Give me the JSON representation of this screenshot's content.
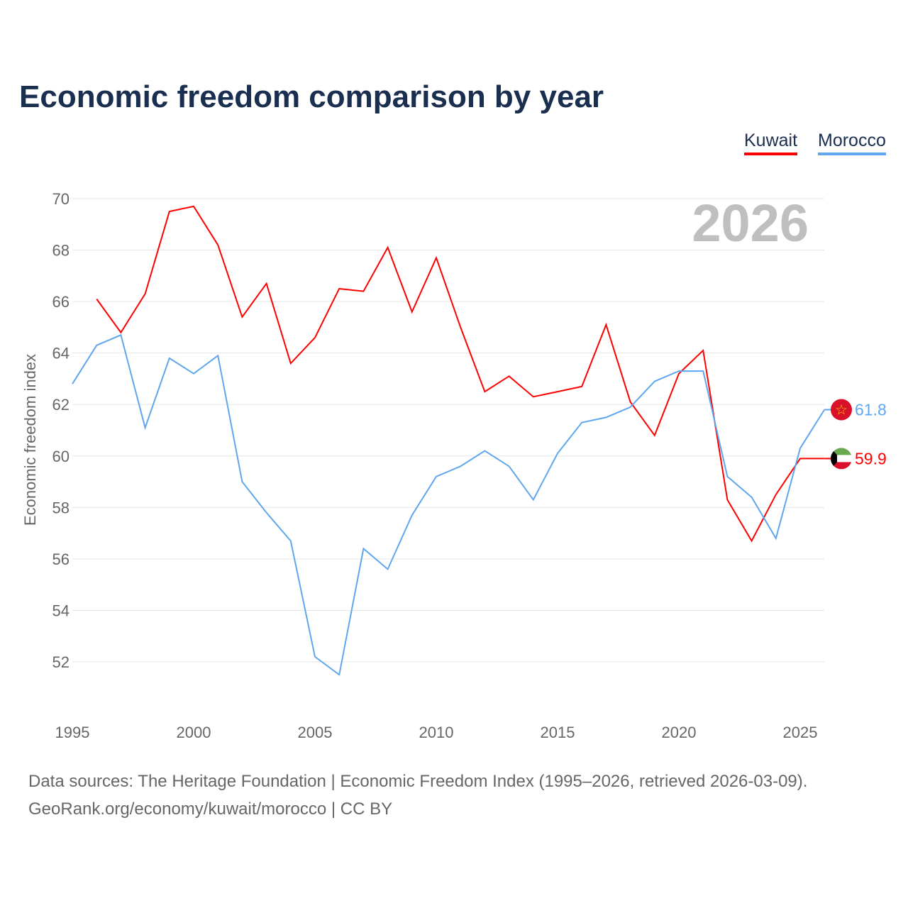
{
  "title": "Economic freedom comparison by year",
  "legend": {
    "kuwait": "Kuwait",
    "morocco": "Morocco"
  },
  "year_watermark": "2026",
  "footer": {
    "line1": "Data sources: The Heritage Foundation | Economic Freedom Index (1995–2026, retrieved 2026-03-09).",
    "line2": "GeoRank.org/economy/kuwait/morocco | CC BY"
  },
  "chart_data": {
    "type": "line",
    "ylabel": "Economic freedom index",
    "xlim": [
      1995,
      2026
    ],
    "ylim": [
      50.5,
      70.5
    ],
    "xticks": [
      1995,
      2000,
      2005,
      2010,
      2015,
      2020,
      2025
    ],
    "yticks": [
      52,
      54,
      56,
      58,
      60,
      62,
      64,
      66,
      68,
      70
    ],
    "series": [
      {
        "name": "Kuwait",
        "color": "#ff0000",
        "end_label": "59.9",
        "flag": "kuwait-flag",
        "x": [
          1996,
          1997,
          1998,
          1999,
          2000,
          2001,
          2002,
          2003,
          2004,
          2005,
          2006,
          2007,
          2008,
          2009,
          2010,
          2011,
          2012,
          2013,
          2014,
          2015,
          2016,
          2017,
          2018,
          2019,
          2020,
          2021,
          2022,
          2023,
          2024,
          2025,
          2026
        ],
        "values": [
          66.1,
          64.8,
          66.3,
          69.5,
          69.7,
          68.2,
          65.4,
          66.7,
          63.6,
          64.6,
          66.5,
          66.4,
          68.1,
          65.6,
          67.7,
          65.0,
          62.5,
          63.1,
          62.3,
          62.5,
          62.7,
          65.1,
          62.1,
          60.8,
          63.2,
          64.1,
          58.3,
          56.7,
          58.5,
          59.9,
          59.9
        ]
      },
      {
        "name": "Morocco",
        "color": "#5ea7ee",
        "end_label": "61.8",
        "flag": "morocco-flag",
        "x": [
          1995,
          1996,
          1997,
          1998,
          1999,
          2000,
          2001,
          2002,
          2003,
          2004,
          2005,
          2006,
          2007,
          2008,
          2009,
          2010,
          2011,
          2012,
          2013,
          2014,
          2015,
          2016,
          2017,
          2018,
          2019,
          2020,
          2021,
          2022,
          2023,
          2024,
          2025,
          2026
        ],
        "values": [
          62.8,
          64.3,
          64.7,
          61.1,
          63.8,
          63.2,
          63.9,
          59.0,
          57.8,
          56.7,
          52.2,
          51.5,
          56.4,
          55.6,
          57.7,
          59.2,
          59.6,
          60.2,
          59.6,
          58.3,
          60.1,
          61.3,
          61.5,
          61.9,
          62.9,
          63.3,
          63.3,
          59.2,
          58.4,
          56.8,
          60.3,
          61.8
        ]
      }
    ]
  }
}
